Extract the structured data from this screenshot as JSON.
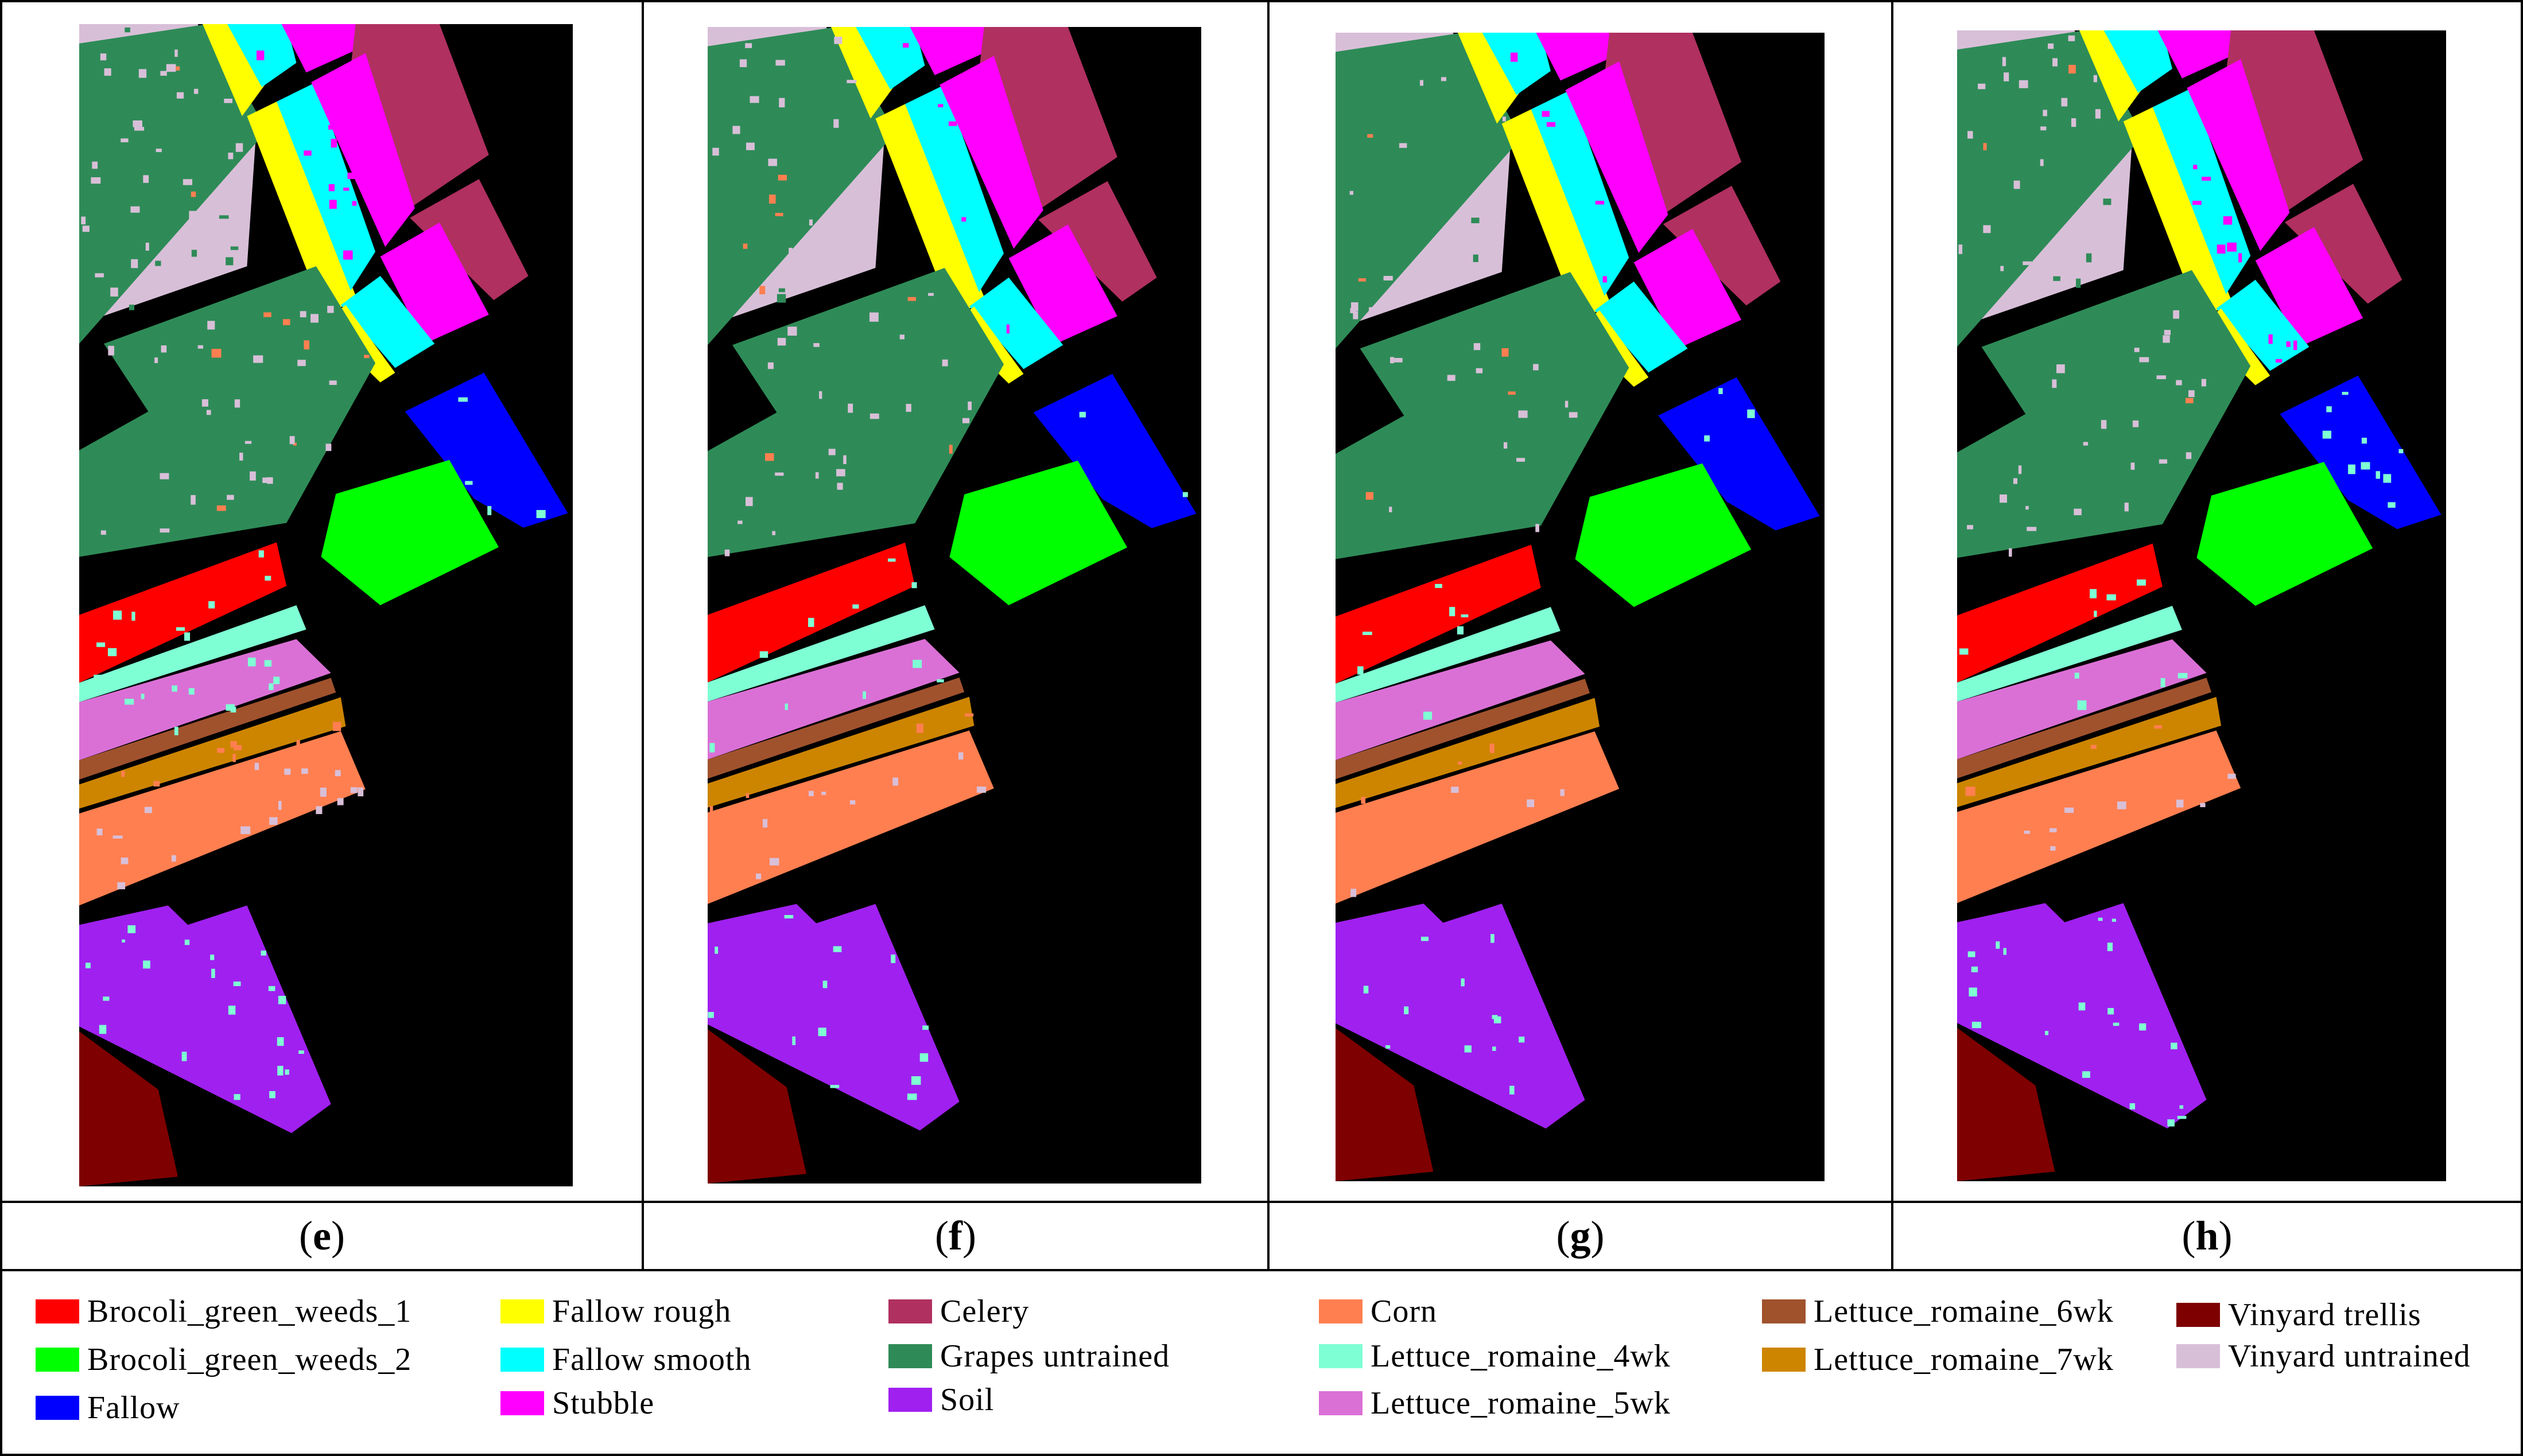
{
  "panels": [
    {
      "label": "e",
      "noise": 0.16,
      "seed": 11
    },
    {
      "label": "f",
      "noise": 0.1,
      "seed": 23
    },
    {
      "label": "g",
      "noise": 0.08,
      "seed": 37
    },
    {
      "label": "h",
      "noise": 0.12,
      "seed": 51
    }
  ],
  "classes": [
    {
      "name": "Brocoli_green_weeds_1",
      "color": "#ff0000"
    },
    {
      "name": "Brocoli_green_weeds_2",
      "color": "#00ff00"
    },
    {
      "name": "Fallow",
      "color": "#0000ff"
    },
    {
      "name": "Fallow rough",
      "color": "#ffff00"
    },
    {
      "name": "Fallow smooth",
      "color": "#00ffff"
    },
    {
      "name": "Stubble",
      "color": "#ff00ff"
    },
    {
      "name": "Celery",
      "color": "#b03060"
    },
    {
      "name": "Grapes untrained",
      "color": "#2e8b57"
    },
    {
      "name": "Soil",
      "color": "#a020f0"
    },
    {
      "name": "Corn",
      "color": "#ff7f50"
    },
    {
      "name": "Lettuce_romaine_4wk",
      "color": "#7fffd4"
    },
    {
      "name": "Lettuce_romaine_5wk",
      "color": "#da70d6"
    },
    {
      "name": "Lettuce_romaine_6wk",
      "color": "#a0522d"
    },
    {
      "name": "Lettuce_romaine_7wk",
      "color": "#cd8500"
    },
    {
      "name": "Vinyard trellis",
      "color": "#7f0000"
    },
    {
      "name": "Vinyard untrained",
      "color": "#d8bfd8"
    }
  ]
}
